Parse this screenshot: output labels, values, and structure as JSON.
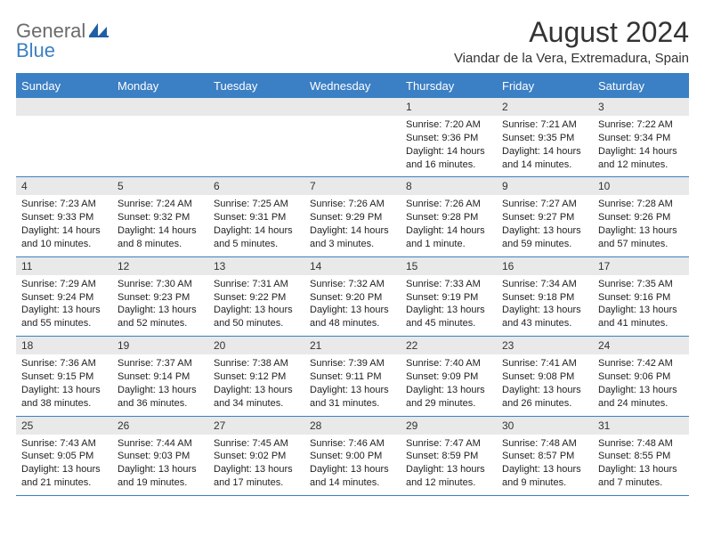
{
  "brand": {
    "text1": "General",
    "text2": "Blue"
  },
  "header": {
    "month": "August 2024",
    "location": "Viandar de la Vera, Extremadura, Spain"
  },
  "colors": {
    "header_bg": "#3b7fc4",
    "header_text": "#ffffff",
    "daynum_bg": "#e9e9e9",
    "border": "#3b7fc4",
    "logo_gray": "#6b6b6b",
    "logo_blue": "#3b7fc4"
  },
  "dayNames": [
    "Sunday",
    "Monday",
    "Tuesday",
    "Wednesday",
    "Thursday",
    "Friday",
    "Saturday"
  ],
  "weeks": [
    [
      {
        "n": "",
        "sunrise": "",
        "sunset": "",
        "daylight": ""
      },
      {
        "n": "",
        "sunrise": "",
        "sunset": "",
        "daylight": ""
      },
      {
        "n": "",
        "sunrise": "",
        "sunset": "",
        "daylight": ""
      },
      {
        "n": "",
        "sunrise": "",
        "sunset": "",
        "daylight": ""
      },
      {
        "n": "1",
        "sunrise": "Sunrise: 7:20 AM",
        "sunset": "Sunset: 9:36 PM",
        "daylight": "Daylight: 14 hours and 16 minutes."
      },
      {
        "n": "2",
        "sunrise": "Sunrise: 7:21 AM",
        "sunset": "Sunset: 9:35 PM",
        "daylight": "Daylight: 14 hours and 14 minutes."
      },
      {
        "n": "3",
        "sunrise": "Sunrise: 7:22 AM",
        "sunset": "Sunset: 9:34 PM",
        "daylight": "Daylight: 14 hours and 12 minutes."
      }
    ],
    [
      {
        "n": "4",
        "sunrise": "Sunrise: 7:23 AM",
        "sunset": "Sunset: 9:33 PM",
        "daylight": "Daylight: 14 hours and 10 minutes."
      },
      {
        "n": "5",
        "sunrise": "Sunrise: 7:24 AM",
        "sunset": "Sunset: 9:32 PM",
        "daylight": "Daylight: 14 hours and 8 minutes."
      },
      {
        "n": "6",
        "sunrise": "Sunrise: 7:25 AM",
        "sunset": "Sunset: 9:31 PM",
        "daylight": "Daylight: 14 hours and 5 minutes."
      },
      {
        "n": "7",
        "sunrise": "Sunrise: 7:26 AM",
        "sunset": "Sunset: 9:29 PM",
        "daylight": "Daylight: 14 hours and 3 minutes."
      },
      {
        "n": "8",
        "sunrise": "Sunrise: 7:26 AM",
        "sunset": "Sunset: 9:28 PM",
        "daylight": "Daylight: 14 hours and 1 minute."
      },
      {
        "n": "9",
        "sunrise": "Sunrise: 7:27 AM",
        "sunset": "Sunset: 9:27 PM",
        "daylight": "Daylight: 13 hours and 59 minutes."
      },
      {
        "n": "10",
        "sunrise": "Sunrise: 7:28 AM",
        "sunset": "Sunset: 9:26 PM",
        "daylight": "Daylight: 13 hours and 57 minutes."
      }
    ],
    [
      {
        "n": "11",
        "sunrise": "Sunrise: 7:29 AM",
        "sunset": "Sunset: 9:24 PM",
        "daylight": "Daylight: 13 hours and 55 minutes."
      },
      {
        "n": "12",
        "sunrise": "Sunrise: 7:30 AM",
        "sunset": "Sunset: 9:23 PM",
        "daylight": "Daylight: 13 hours and 52 minutes."
      },
      {
        "n": "13",
        "sunrise": "Sunrise: 7:31 AM",
        "sunset": "Sunset: 9:22 PM",
        "daylight": "Daylight: 13 hours and 50 minutes."
      },
      {
        "n": "14",
        "sunrise": "Sunrise: 7:32 AM",
        "sunset": "Sunset: 9:20 PM",
        "daylight": "Daylight: 13 hours and 48 minutes."
      },
      {
        "n": "15",
        "sunrise": "Sunrise: 7:33 AM",
        "sunset": "Sunset: 9:19 PM",
        "daylight": "Daylight: 13 hours and 45 minutes."
      },
      {
        "n": "16",
        "sunrise": "Sunrise: 7:34 AM",
        "sunset": "Sunset: 9:18 PM",
        "daylight": "Daylight: 13 hours and 43 minutes."
      },
      {
        "n": "17",
        "sunrise": "Sunrise: 7:35 AM",
        "sunset": "Sunset: 9:16 PM",
        "daylight": "Daylight: 13 hours and 41 minutes."
      }
    ],
    [
      {
        "n": "18",
        "sunrise": "Sunrise: 7:36 AM",
        "sunset": "Sunset: 9:15 PM",
        "daylight": "Daylight: 13 hours and 38 minutes."
      },
      {
        "n": "19",
        "sunrise": "Sunrise: 7:37 AM",
        "sunset": "Sunset: 9:14 PM",
        "daylight": "Daylight: 13 hours and 36 minutes."
      },
      {
        "n": "20",
        "sunrise": "Sunrise: 7:38 AM",
        "sunset": "Sunset: 9:12 PM",
        "daylight": "Daylight: 13 hours and 34 minutes."
      },
      {
        "n": "21",
        "sunrise": "Sunrise: 7:39 AM",
        "sunset": "Sunset: 9:11 PM",
        "daylight": "Daylight: 13 hours and 31 minutes."
      },
      {
        "n": "22",
        "sunrise": "Sunrise: 7:40 AM",
        "sunset": "Sunset: 9:09 PM",
        "daylight": "Daylight: 13 hours and 29 minutes."
      },
      {
        "n": "23",
        "sunrise": "Sunrise: 7:41 AM",
        "sunset": "Sunset: 9:08 PM",
        "daylight": "Daylight: 13 hours and 26 minutes."
      },
      {
        "n": "24",
        "sunrise": "Sunrise: 7:42 AM",
        "sunset": "Sunset: 9:06 PM",
        "daylight": "Daylight: 13 hours and 24 minutes."
      }
    ],
    [
      {
        "n": "25",
        "sunrise": "Sunrise: 7:43 AM",
        "sunset": "Sunset: 9:05 PM",
        "daylight": "Daylight: 13 hours and 21 minutes."
      },
      {
        "n": "26",
        "sunrise": "Sunrise: 7:44 AM",
        "sunset": "Sunset: 9:03 PM",
        "daylight": "Daylight: 13 hours and 19 minutes."
      },
      {
        "n": "27",
        "sunrise": "Sunrise: 7:45 AM",
        "sunset": "Sunset: 9:02 PM",
        "daylight": "Daylight: 13 hours and 17 minutes."
      },
      {
        "n": "28",
        "sunrise": "Sunrise: 7:46 AM",
        "sunset": "Sunset: 9:00 PM",
        "daylight": "Daylight: 13 hours and 14 minutes."
      },
      {
        "n": "29",
        "sunrise": "Sunrise: 7:47 AM",
        "sunset": "Sunset: 8:59 PM",
        "daylight": "Daylight: 13 hours and 12 minutes."
      },
      {
        "n": "30",
        "sunrise": "Sunrise: 7:48 AM",
        "sunset": "Sunset: 8:57 PM",
        "daylight": "Daylight: 13 hours and 9 minutes."
      },
      {
        "n": "31",
        "sunrise": "Sunrise: 7:48 AM",
        "sunset": "Sunset: 8:55 PM",
        "daylight": "Daylight: 13 hours and 7 minutes."
      }
    ]
  ]
}
